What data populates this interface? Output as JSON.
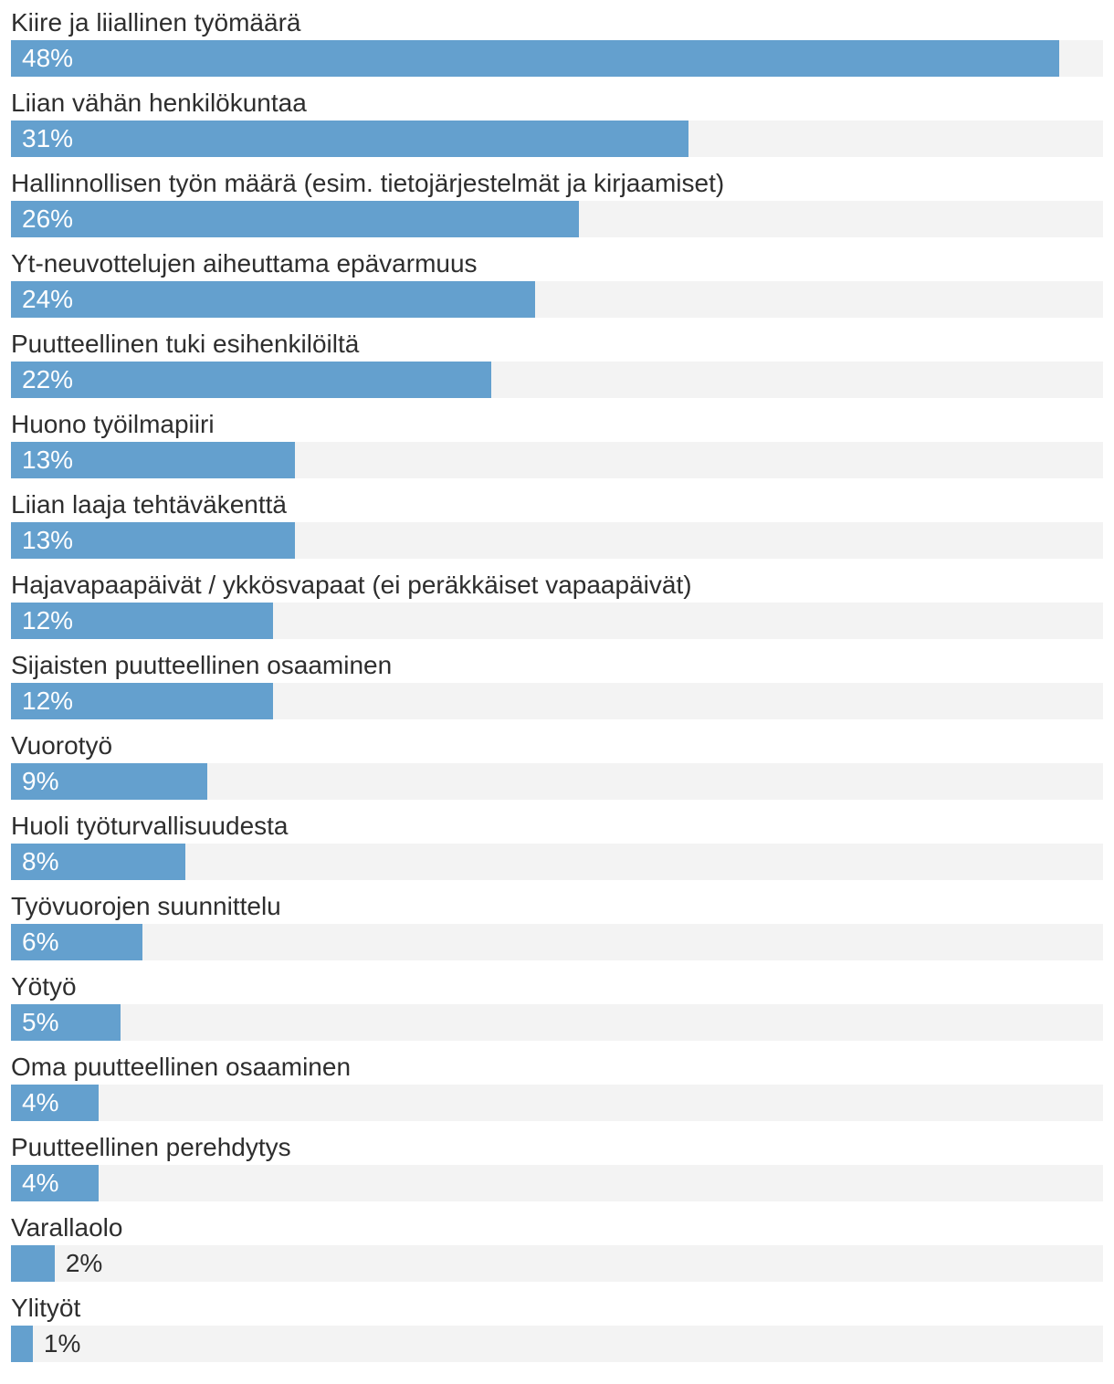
{
  "chart_data": {
    "type": "bar",
    "orientation": "horizontal",
    "title": "",
    "xlabel": "",
    "ylabel": "",
    "xlim": [
      0,
      50
    ],
    "grid": false,
    "legend": "none",
    "value_suffix": "%",
    "inside_label_min_value": 4,
    "colors": {
      "bar_fill": "#64a0ce",
      "bar_track": "#f3f3f3",
      "category_text": "#2e2e2e",
      "value_text_inside": "#ffffff",
      "value_text_outside": "#2e2e2e"
    },
    "categories": [
      "Kiire ja liiallinen työmäärä",
      "Liian vähän henkilökuntaa",
      "Hallinnollisen työn määrä (esim. tietojärjestelmät ja kirjaamiset)",
      "Yt-neuvottelujen aiheuttama epävarmuus",
      "Puutteellinen tuki esihenkilöiltä",
      "Huono työilmapiiri",
      "Liian laaja tehtäväkenttä",
      "Hajavapaapäivät / ykkösvapaat (ei peräkkäiset vapaapäivät)",
      "Sijaisten puutteellinen osaaminen",
      "Vuorotyö",
      "Huoli työturvallisuudesta",
      "Työvuorojen suunnittelu",
      "Yötyö",
      "Oma puutteellinen osaaminen",
      "Puutteellinen perehdytys",
      "Varallaolo",
      "Ylityöt"
    ],
    "values": [
      48,
      31,
      26,
      24,
      22,
      13,
      13,
      12,
      12,
      9,
      8,
      6,
      5,
      4,
      4,
      2,
      1
    ],
    "value_labels": [
      "48%",
      "31%",
      "26%",
      "24%",
      "22%",
      "13%",
      "13%",
      "12%",
      "12%",
      "9%",
      "8%",
      "6%",
      "5%",
      "4%",
      "4%",
      "2%",
      "1%"
    ]
  }
}
